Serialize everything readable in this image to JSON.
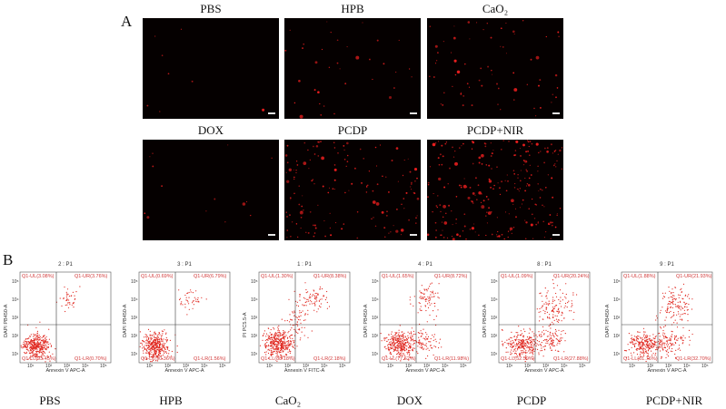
{
  "panel_a": {
    "letter": "A",
    "images": [
      {
        "label": "PBS",
        "density": 8
      },
      {
        "label": "HPB",
        "density": 35
      },
      {
        "label": "CaO₂",
        "density": 70
      },
      {
        "label": "DOX",
        "density": 14
      },
      {
        "label": "PCDP",
        "density": 150
      },
      {
        "label": "PCDP+NIR",
        "density": 260
      }
    ]
  },
  "panel_b": {
    "letter": "B",
    "plots": [
      {
        "gate": "2 : P1",
        "xlabel": "Annexin V APC-A",
        "ylabel": "DAPI PB450-A",
        "q1_ul": "Q1-UL(3.08%)",
        "q1_ur": "Q1-UR(3.76%)",
        "q1_ll": "Q1-LL(93.45%)",
        "q1_lr": "Q1-LR(0.70%)",
        "caption": "PBS",
        "cluster": "low"
      },
      {
        "gate": "3 : P1",
        "xlabel": "Annexin V APC-A",
        "ylabel": "DAPI PB450-A",
        "q1_ul": "Q1-UL(0.69%)",
        "q1_ur": "Q1-UR(6.79%)",
        "q1_ll": "Q1-LL(90.36%)",
        "q1_lr": "Q1-LR(1.56%)",
        "caption": "HPB",
        "cluster": "low"
      },
      {
        "gate": "1 : P1",
        "xlabel": "Annexin V FITC-A",
        "ylabel": "PI PC5.5-A",
        "q1_ul": "Q1-UL(1.30%)",
        "q1_ur": "Q1-UR(8.38%)",
        "q1_ll": "Q1-LL(88.18%)",
        "q1_lr": "Q1-LR(2.18%)",
        "caption": "CaO₂",
        "cluster": "diag"
      },
      {
        "gate": "4 : P1",
        "xlabel": "Annexin V APC-A",
        "ylabel": "DAPI PB450-A",
        "q1_ul": "Q1-UL(1.65%)",
        "q1_ur": "Q1-UR(8.72%)",
        "q1_ll": "Q1-LL(77.62%)",
        "q1_lr": "Q1-LR(11.98%)",
        "caption": "DOX",
        "cluster": "mid"
      },
      {
        "gate": "8 : P1",
        "xlabel": "Annexin V APC-A",
        "ylabel": "DAPI PB450-A",
        "q1_ul": "Q1-UL(1.09%)",
        "q1_ur": "Q1-UR(20.24%)",
        "q1_ll": "Q1-LL(52.59%)",
        "q1_lr": "Q1-LR(27.88%)",
        "caption": "PCDP",
        "cluster": "high"
      },
      {
        "gate": "9 : P1",
        "xlabel": "Annexin V APC-A",
        "ylabel": "DAPI PB450-A",
        "q1_ul": "Q1-UL(1.88%)",
        "q1_ur": "Q1-UR(21.93%)",
        "q1_ll": "Q1-LL(61.76%)",
        "q1_lr": "Q1-LR(32.70%)",
        "caption": "PCDP+NIR",
        "cluster": "high"
      }
    ],
    "x_ticks": [
      "10¹",
      "10²",
      "10³",
      "10⁴",
      "10⁵"
    ],
    "y_ticks": [
      "10¹",
      "10²",
      "10³",
      "10⁴",
      "10⁵"
    ]
  },
  "colors": {
    "dot": "#e0261e",
    "gate_line": "#3a3a3a",
    "micro_bg": "#050000"
  }
}
